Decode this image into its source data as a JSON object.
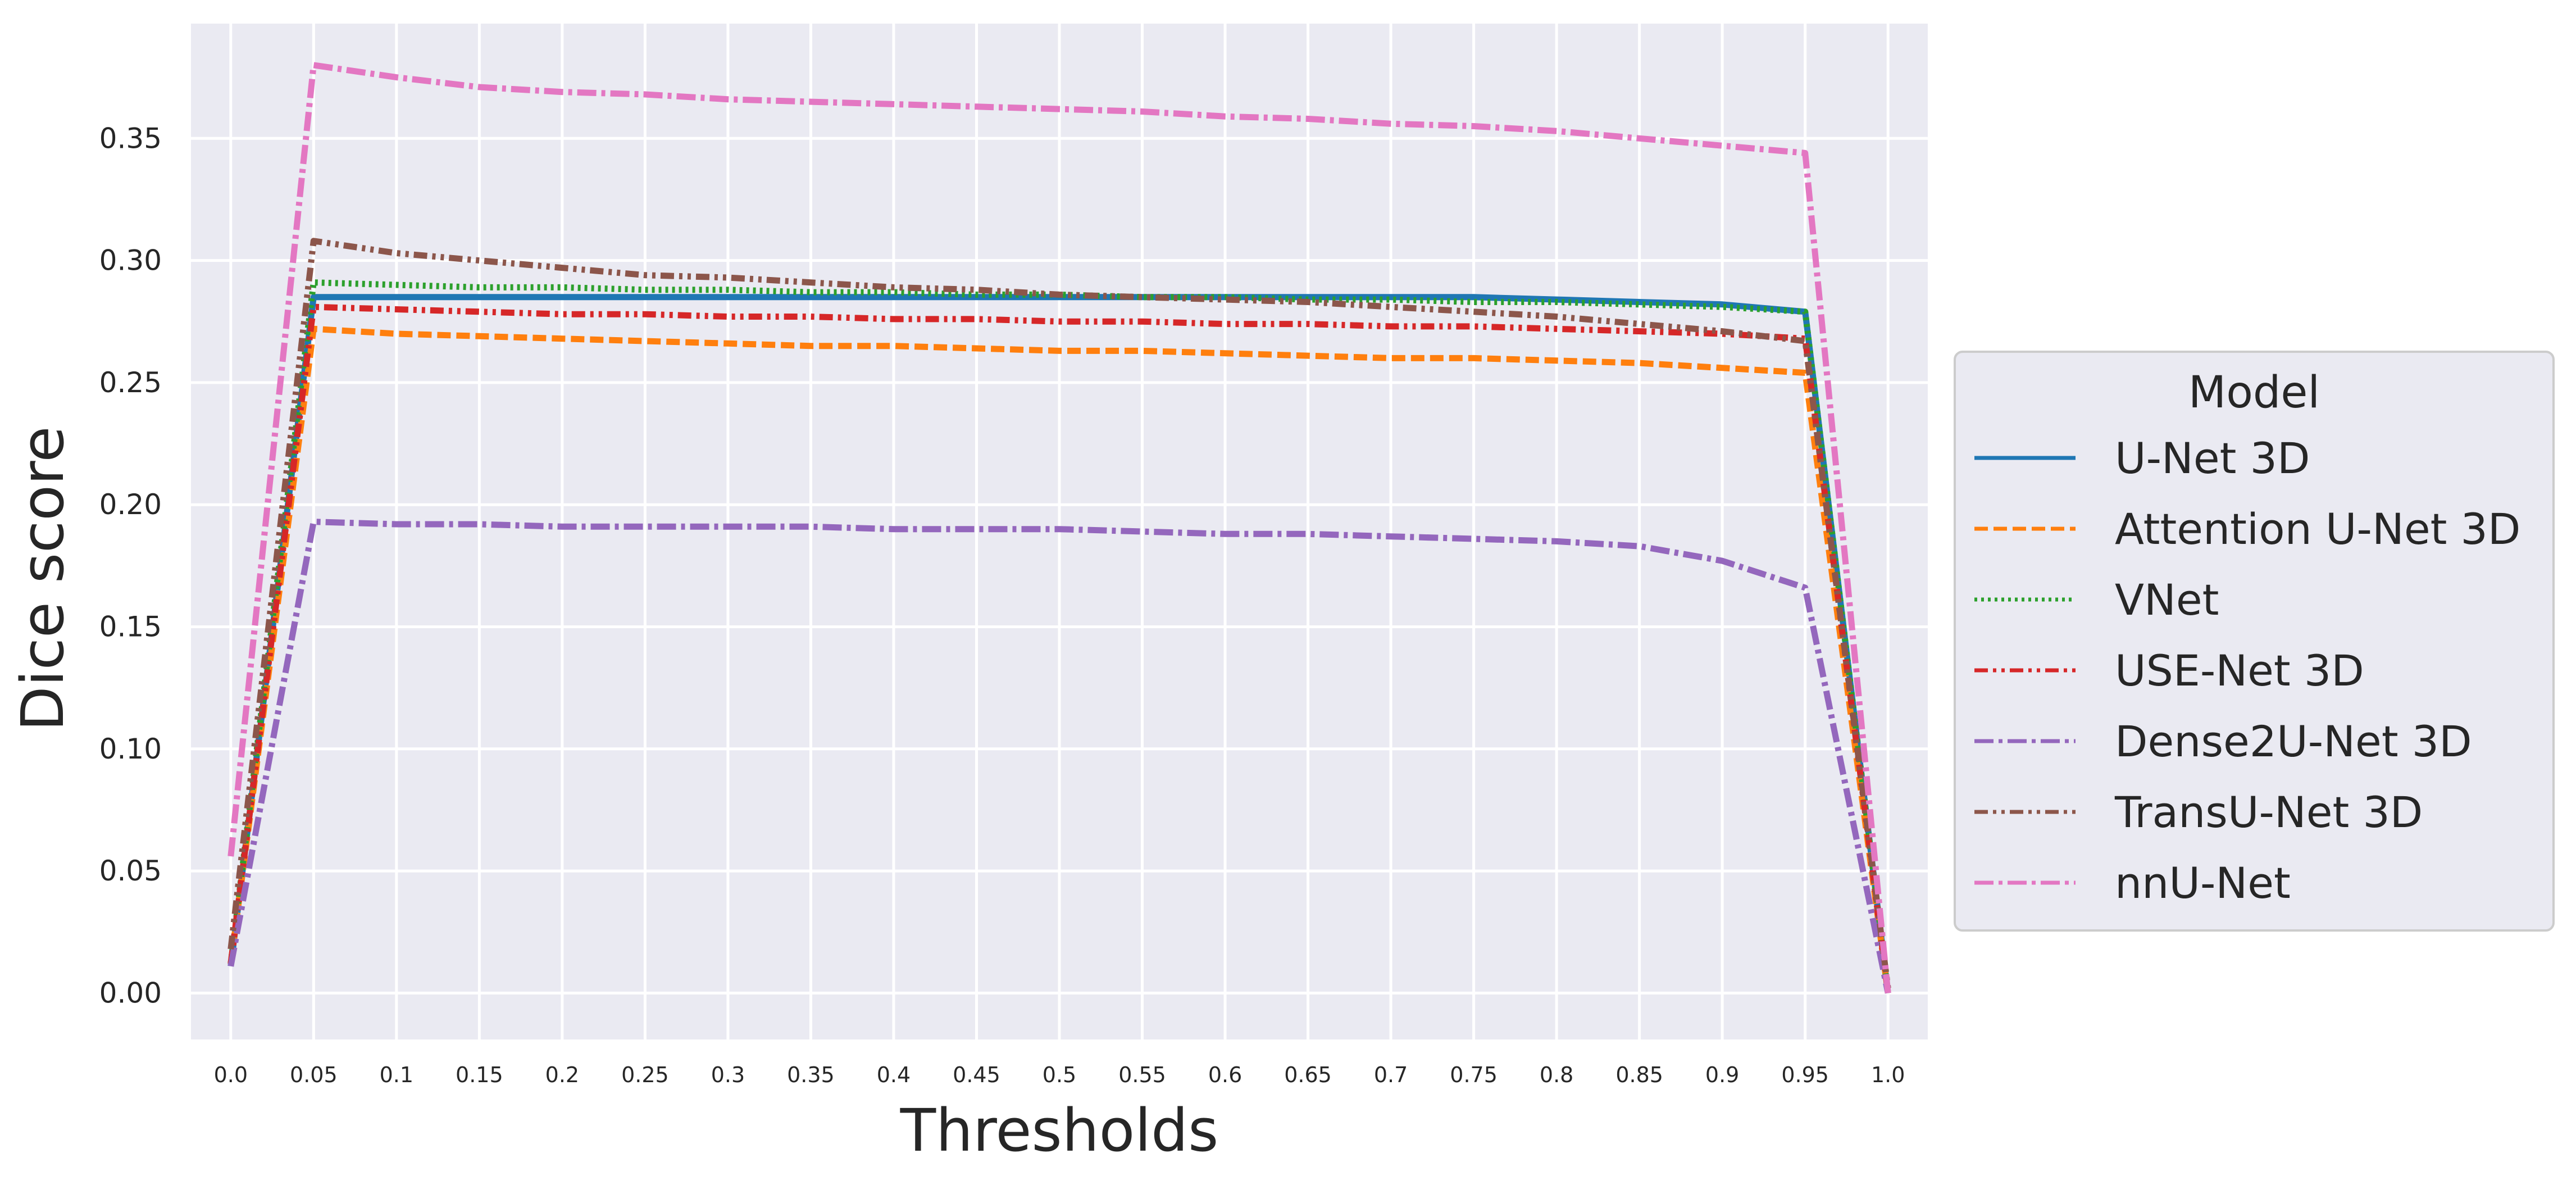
{
  "chart_data": {
    "type": "line",
    "xlabel": "Thresholds",
    "ylabel": "Dice score",
    "x_tick_labels": [
      "0.0",
      "0.05",
      "0.1",
      "0.15",
      "0.2",
      "0.25",
      "0.3",
      "0.35",
      "0.4",
      "0.45",
      "0.5",
      "0.55",
      "0.6",
      "0.65",
      "0.7",
      "0.75",
      "0.8",
      "0.85",
      "0.9",
      "0.95",
      "1.0"
    ],
    "y_tick_labels": [
      "0.00",
      "0.05",
      "0.10",
      "0.15",
      "0.20",
      "0.25",
      "0.30",
      "0.35"
    ],
    "xlim": [
      -0.024,
      1.024
    ],
    "ylim": [
      -0.019,
      0.397
    ],
    "grid": true,
    "legend": {
      "title": "Model",
      "placement": "center-right outside"
    },
    "x": [
      0.0,
      0.05,
      0.1,
      0.15,
      0.2,
      0.25,
      0.3,
      0.35,
      0.4,
      0.45,
      0.5,
      0.55,
      0.6,
      0.65,
      0.7,
      0.75,
      0.8,
      0.85,
      0.9,
      0.95,
      1.0
    ],
    "series": [
      {
        "name": "U-Net 3D",
        "color": "#1f77b4",
        "dash": "solid",
        "values": [
          0.011,
          0.285,
          0.285,
          0.285,
          0.285,
          0.285,
          0.285,
          0.285,
          0.285,
          0.285,
          0.285,
          0.285,
          0.285,
          0.285,
          0.285,
          0.285,
          0.284,
          0.283,
          0.282,
          0.279,
          0.0
        ]
      },
      {
        "name": "Attention U-Net 3D",
        "color": "#ff7f0e",
        "dash": "dashed",
        "values": [
          0.012,
          0.272,
          0.27,
          0.269,
          0.268,
          0.267,
          0.266,
          0.265,
          0.265,
          0.264,
          0.263,
          0.263,
          0.262,
          0.261,
          0.26,
          0.26,
          0.259,
          0.258,
          0.256,
          0.254,
          0.0
        ]
      },
      {
        "name": "VNet",
        "color": "#2ca02c",
        "dash": "dotted",
        "values": [
          0.012,
          0.291,
          0.29,
          0.289,
          0.289,
          0.288,
          0.288,
          0.287,
          0.287,
          0.286,
          0.286,
          0.285,
          0.285,
          0.284,
          0.284,
          0.283,
          0.283,
          0.282,
          0.281,
          0.279,
          0.0
        ]
      },
      {
        "name": "USE-Net 3D",
        "color": "#d62728",
        "dash": "dashdotdot",
        "values": [
          0.012,
          0.281,
          0.28,
          0.279,
          0.278,
          0.278,
          0.277,
          0.277,
          0.276,
          0.276,
          0.275,
          0.275,
          0.274,
          0.274,
          0.273,
          0.273,
          0.272,
          0.271,
          0.27,
          0.268,
          0.0
        ]
      },
      {
        "name": "Dense2U-Net 3D",
        "color": "#9467bd",
        "dash": "dashdot",
        "values": [
          0.011,
          0.193,
          0.192,
          0.192,
          0.191,
          0.191,
          0.191,
          0.191,
          0.19,
          0.19,
          0.19,
          0.189,
          0.188,
          0.188,
          0.187,
          0.186,
          0.185,
          0.183,
          0.177,
          0.166,
          0.0
        ]
      },
      {
        "name": "TransU-Net 3D",
        "color": "#8c564b",
        "dash": "dashdotdot",
        "values": [
          0.018,
          0.308,
          0.303,
          0.3,
          0.297,
          0.294,
          0.293,
          0.291,
          0.289,
          0.288,
          0.286,
          0.285,
          0.284,
          0.283,
          0.281,
          0.279,
          0.277,
          0.274,
          0.271,
          0.267,
          0.002
        ]
      },
      {
        "name": "nnU-Net",
        "color": "#e377c2",
        "dash": "dashdot",
        "values": [
          0.056,
          0.38,
          0.375,
          0.371,
          0.369,
          0.368,
          0.366,
          0.365,
          0.364,
          0.363,
          0.362,
          0.361,
          0.359,
          0.358,
          0.356,
          0.355,
          0.353,
          0.35,
          0.347,
          0.344,
          0.0
        ]
      }
    ]
  }
}
